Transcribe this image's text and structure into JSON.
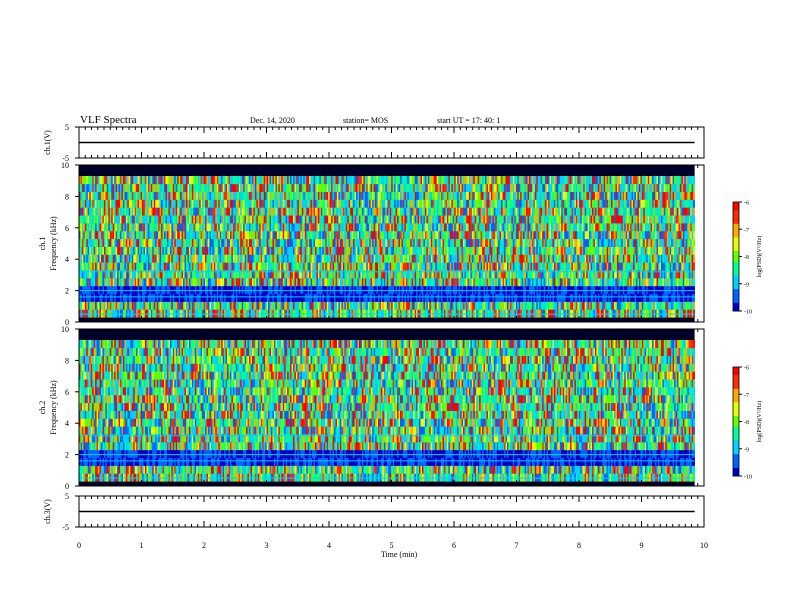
{
  "header": {
    "title": "VLF Spectra",
    "date": "Dec. 14, 2020",
    "station": "station= MOS",
    "start": "start  UT  =   17: 40: 1"
  },
  "colors": {
    "spectrum": [
      "#000028",
      "#0000c8",
      "#0064ff",
      "#00d2ff",
      "#00ff96",
      "#64ff00",
      "#e6ff00",
      "#ffaa00",
      "#ff2a00",
      "#ff0000",
      "#ffffff"
    ]
  },
  "chart_data": [
    {
      "type": "line",
      "name": "waveform-ch1",
      "ylabel": "ch.1(V)",
      "ylim": [
        -5,
        5
      ],
      "yticks": [
        "5",
        "-5"
      ],
      "x": [
        0,
        9.85
      ],
      "y": [
        0,
        0
      ]
    },
    {
      "type": "heatmap",
      "name": "spectrogram-ch1",
      "ylabel": "ch.1",
      "ylabel2": "Frequency (kHz)",
      "ylim": [
        0,
        10
      ],
      "yticks": [
        "0",
        "2",
        "4",
        "6",
        "8",
        "10"
      ],
      "colorbar": {
        "label": "log(PSD)(V²/Hz)",
        "range": [
          -10,
          -6
        ],
        "ticks": [
          "-6",
          "-7",
          "-8",
          "-9",
          "-10"
        ]
      }
    },
    {
      "type": "heatmap",
      "name": "spectrogram-ch2",
      "ylabel": "ch.2",
      "ylabel2": "Frequency (kHz)",
      "ylim": [
        0,
        10
      ],
      "yticks": [
        "0",
        "2",
        "4",
        "6",
        "8",
        "10"
      ],
      "colorbar": {
        "label": "log(PSD)(V²/Hz)",
        "range": [
          -10,
          -6
        ],
        "ticks": [
          "-6",
          "-7",
          "-8",
          "-9",
          "-10"
        ]
      }
    },
    {
      "type": "line",
      "name": "waveform-ch3",
      "ylabel": "ch.3(V)",
      "ylim": [
        -5,
        5
      ],
      "yticks": [
        "5",
        "-5"
      ],
      "x": [
        0,
        9.85
      ],
      "y": [
        0,
        0
      ]
    }
  ],
  "xaxis": {
    "label": "Time  (min)",
    "range": [
      0,
      10
    ],
    "ticks": [
      "0",
      "1",
      "2",
      "3",
      "4",
      "5",
      "6",
      "7",
      "8",
      "9",
      "10"
    ]
  }
}
